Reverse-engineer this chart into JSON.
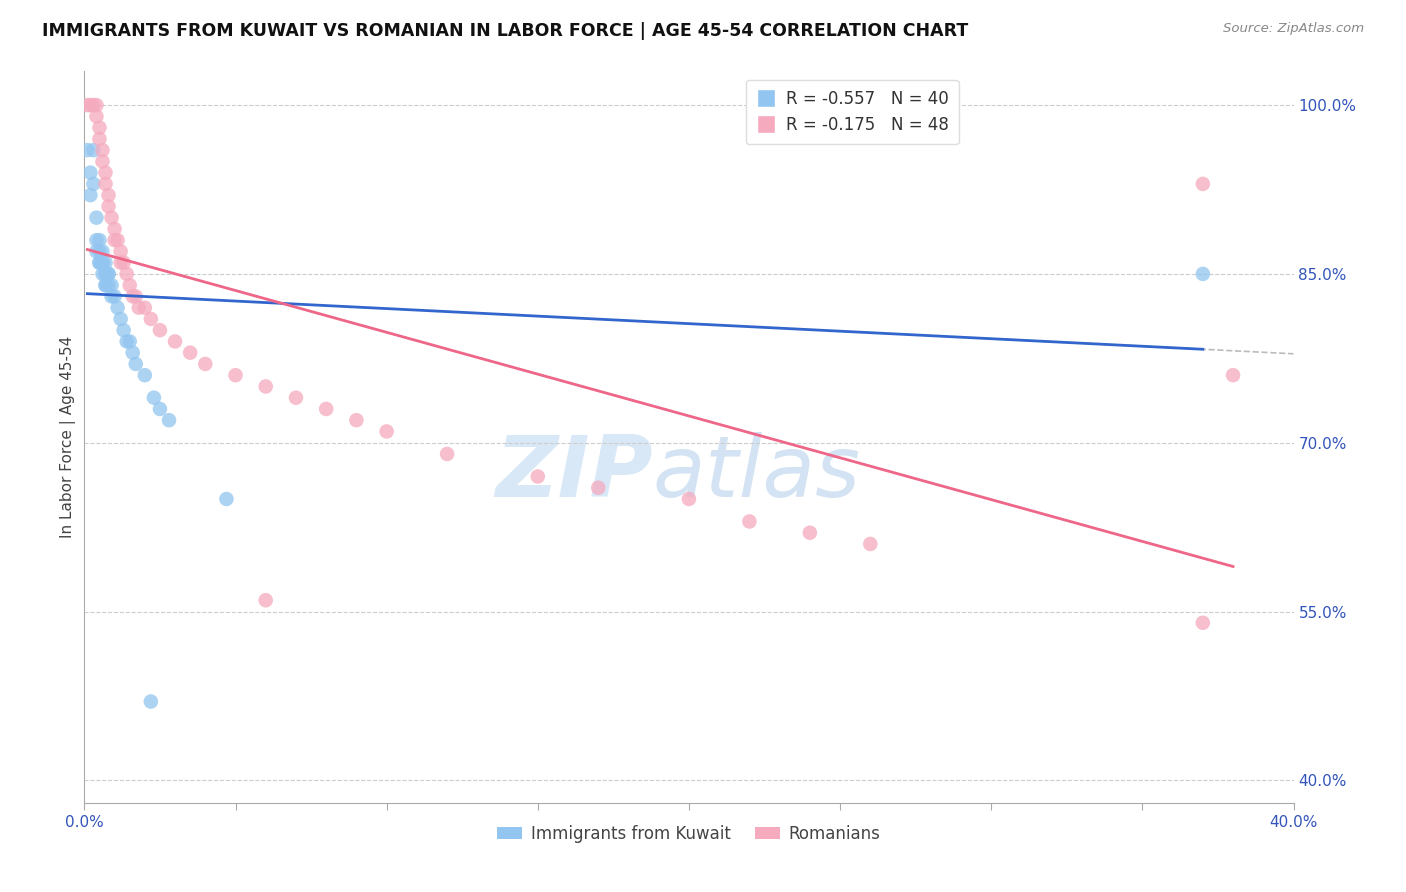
{
  "title": "IMMIGRANTS FROM KUWAIT VS ROMANIAN IN LABOR FORCE | AGE 45-54 CORRELATION CHART",
  "source": "Source: ZipAtlas.com",
  "ylabel": "In Labor Force | Age 45-54",
  "legend_labels": [
    "Immigrants from Kuwait",
    "Romanians"
  ],
  "r_kuwait": "-0.557",
  "n_kuwait": "40",
  "r_romanian": "-0.175",
  "n_romanian": "48",
  "xlim": [
    0.0,
    0.4
  ],
  "ylim": [
    0.38,
    1.03
  ],
  "yticks_right": [
    1.0,
    0.85,
    0.7,
    0.55,
    0.4
  ],
  "ytick_right_labels": [
    "100.0%",
    "85.0%",
    "70.0%",
    "55.0%",
    "40.0%"
  ],
  "xticks": [
    0.0,
    0.05,
    0.1,
    0.15,
    0.2,
    0.25,
    0.3,
    0.35,
    0.4
  ],
  "xtick_labels": [
    "0.0%",
    "",
    "",
    "",
    "",
    "",
    "",
    "",
    "40.0%"
  ],
  "color_kuwait": "#92C5F0",
  "color_romanian": "#F5AABE",
  "color_line_kuwait": "#3366CC",
  "color_line_romanian": "#EE6688",
  "watermark_zip": "ZIP",
  "watermark_atlas": "atlas",
  "kuwait_x": [
    0.001,
    0.002,
    0.002,
    0.003,
    0.003,
    0.004,
    0.004,
    0.004,
    0.005,
    0.005,
    0.005,
    0.005,
    0.006,
    0.006,
    0.006,
    0.006,
    0.007,
    0.007,
    0.007,
    0.007,
    0.007,
    0.008,
    0.008,
    0.008,
    0.009,
    0.009,
    0.01,
    0.011,
    0.012,
    0.013,
    0.014,
    0.015,
    0.016,
    0.017,
    0.02,
    0.023,
    0.025,
    0.028,
    0.047,
    0.37
  ],
  "kuwait_y": [
    0.96,
    0.94,
    0.92,
    0.96,
    0.93,
    0.9,
    0.88,
    0.87,
    0.88,
    0.87,
    0.86,
    0.86,
    0.87,
    0.86,
    0.86,
    0.85,
    0.86,
    0.85,
    0.85,
    0.84,
    0.84,
    0.85,
    0.85,
    0.84,
    0.84,
    0.83,
    0.83,
    0.82,
    0.81,
    0.8,
    0.79,
    0.79,
    0.78,
    0.77,
    0.76,
    0.74,
    0.73,
    0.72,
    0.65,
    0.85
  ],
  "kuwait_outlier_x": [
    0.022
  ],
  "kuwait_outlier_y": [
    0.47
  ],
  "romanian_x": [
    0.001,
    0.002,
    0.003,
    0.004,
    0.004,
    0.005,
    0.005,
    0.006,
    0.006,
    0.007,
    0.007,
    0.008,
    0.008,
    0.009,
    0.01,
    0.01,
    0.011,
    0.012,
    0.012,
    0.013,
    0.014,
    0.015,
    0.016,
    0.017,
    0.018,
    0.02,
    0.022,
    0.025,
    0.03,
    0.035,
    0.04,
    0.05,
    0.06,
    0.07,
    0.08,
    0.09,
    0.1,
    0.12,
    0.15,
    0.17,
    0.2,
    0.22,
    0.24,
    0.26,
    0.37,
    0.38,
    0.06,
    0.37
  ],
  "romanian_y": [
    1.0,
    1.0,
    1.0,
    1.0,
    0.99,
    0.98,
    0.97,
    0.96,
    0.95,
    0.94,
    0.93,
    0.92,
    0.91,
    0.9,
    0.89,
    0.88,
    0.88,
    0.87,
    0.86,
    0.86,
    0.85,
    0.84,
    0.83,
    0.83,
    0.82,
    0.82,
    0.81,
    0.8,
    0.79,
    0.78,
    0.77,
    0.76,
    0.75,
    0.74,
    0.73,
    0.72,
    0.71,
    0.69,
    0.67,
    0.66,
    0.65,
    0.63,
    0.62,
    0.61,
    0.93,
    0.76,
    0.56,
    0.54
  ],
  "background_color": "#FFFFFF",
  "grid_color": "#CCCCCC"
}
